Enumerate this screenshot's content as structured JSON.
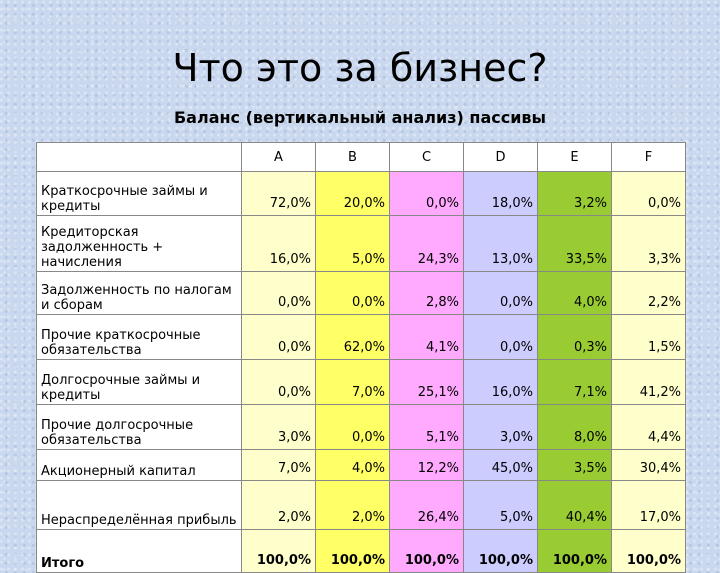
{
  "title": "Что это за бизнес?",
  "subtitle": "Баланс (вертикальный анализ) пассивы",
  "columns": [
    "A",
    "B",
    "C",
    "D",
    "E",
    "F"
  ],
  "colors": {
    "A": "#ffffcc",
    "B": "#ffff66",
    "C": "#ffaaff",
    "D": "#ccccff",
    "E": "#99cc33",
    "F": "#ffffcc"
  },
  "rows": [
    {
      "label": "Краткосрочные займы и кредиты",
      "values": [
        "72,0%",
        "20,0%",
        "0,0%",
        "18,0%",
        "3,2%",
        "0,0%"
      ]
    },
    {
      "label": "Кредиторская задолженность + начисления",
      "values": [
        "16,0%",
        "5,0%",
        "24,3%",
        "13,0%",
        "33,5%",
        "3,3%"
      ]
    },
    {
      "label": "Задолженность по налогам и сборам",
      "values": [
        "0,0%",
        "0,0%",
        "2,8%",
        "0,0%",
        "4,0%",
        "2,2%"
      ]
    },
    {
      "label": "Прочие краткосрочные обязательства",
      "values": [
        "0,0%",
        "62,0%",
        "4,1%",
        "0,0%",
        "0,3%",
        "1,5%"
      ]
    },
    {
      "label": "Долгосрочные займы и кредиты",
      "values": [
        "0,0%",
        "7,0%",
        "25,1%",
        "16,0%",
        "7,1%",
        "41,2%"
      ]
    },
    {
      "label": "Прочие долгосрочные обязательства",
      "values": [
        "3,0%",
        "0,0%",
        "5,1%",
        "3,0%",
        "8,0%",
        "4,4%"
      ]
    },
    {
      "label": "Акционерный капитал",
      "values": [
        "7,0%",
        "4,0%",
        "12,2%",
        "45,0%",
        "3,5%",
        "30,4%"
      ]
    },
    {
      "label": "Нераспределённая прибыль",
      "values": [
        "2,0%",
        "2,0%",
        "26,4%",
        "5,0%",
        "40,4%",
        "17,0%"
      ]
    },
    {
      "label": "Итого",
      "values": [
        "100,0%",
        "100,0%",
        "100,0%",
        "100,0%",
        "100,0%",
        "100,0%"
      ]
    }
  ]
}
